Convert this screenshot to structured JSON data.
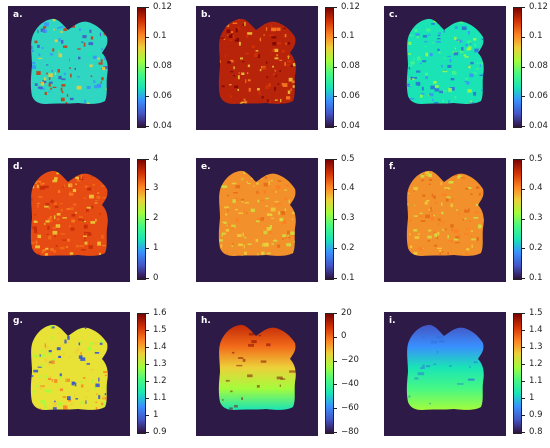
{
  "panels": [
    {
      "label": "a.",
      "ticks": [
        "0.12",
        "0.1",
        "0.08",
        "0.06",
        "0.04"
      ]
    },
    {
      "label": "b.",
      "ticks": [
        "0.12",
        "0.1",
        "0.08",
        "0.06",
        "0.04"
      ]
    },
    {
      "label": "c.",
      "ticks": [
        "0.12",
        "0.1",
        "0.08",
        "0.06",
        "0.04"
      ]
    },
    {
      "label": "d.",
      "ticks": [
        "4",
        "3",
        "2",
        "1",
        "0"
      ]
    },
    {
      "label": "e.",
      "ticks": [
        "0.5",
        "0.4",
        "0.3",
        "0.2",
        "0.1"
      ]
    },
    {
      "label": "f.",
      "ticks": [
        "0.5",
        "0.4",
        "0.3",
        "0.2",
        "0.1"
      ]
    },
    {
      "label": "g.",
      "ticks": [
        "1.6",
        "1.5",
        "1.4",
        "1.3",
        "1.2",
        "1.1",
        "1",
        "0.9"
      ]
    },
    {
      "label": "h.",
      "ticks": [
        "20",
        "0",
        "−20",
        "−40",
        "−60",
        "−80"
      ]
    },
    {
      "label": "i.",
      "ticks": [
        "1.5",
        "1.4",
        "1.3",
        "1.2",
        "1.1",
        "1",
        "0.9",
        "0.8"
      ]
    }
  ],
  "colors": {
    "background": "#2e1a47",
    "colormap": [
      "#7a0403",
      "#d23105",
      "#fb8022",
      "#edd03a",
      "#a4fc3c",
      "#46f884",
      "#1ae4b6",
      "#3a8ffe",
      "#4454c4",
      "#30123b"
    ]
  }
}
